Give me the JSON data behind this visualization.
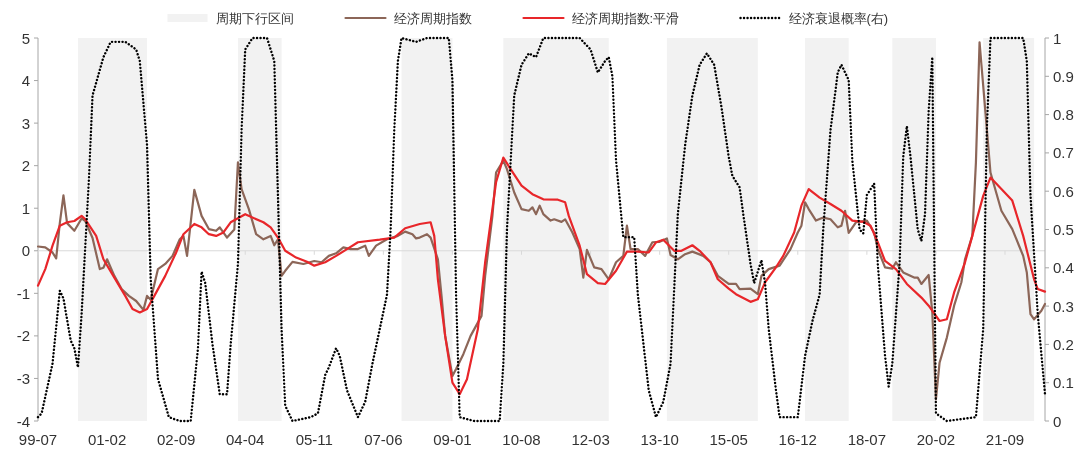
{
  "chart_data": {
    "type": "line",
    "xlim": [
      "1999-07",
      "2022-08"
    ],
    "ylim": [
      -4,
      5
    ],
    "y2lim": [
      0,
      1
    ],
    "xticks": [
      {
        "value": "1999-07",
        "label": "99-07"
      },
      {
        "value": "2001-02",
        "label": "01-02"
      },
      {
        "value": "2002-09",
        "label": "02-09"
      },
      {
        "value": "2004-04",
        "label": "04-04"
      },
      {
        "value": "2005-11",
        "label": "05-11"
      },
      {
        "value": "2007-06",
        "label": "07-06"
      },
      {
        "value": "2009-01",
        "label": "09-01"
      },
      {
        "value": "2010-08",
        "label": "10-08"
      },
      {
        "value": "2012-03",
        "label": "12-03"
      },
      {
        "value": "2013-10",
        "label": "13-10"
      },
      {
        "value": "2015-05",
        "label": "15-05"
      },
      {
        "value": "2016-12",
        "label": "16-12"
      },
      {
        "value": "2018-07",
        "label": "18-07"
      },
      {
        "value": "2020-02",
        "label": "20-02"
      },
      {
        "value": "2021-09",
        "label": "21-09"
      }
    ],
    "yticks": [
      -4,
      -3,
      -2,
      -1,
      0,
      1,
      2,
      3,
      4,
      5
    ],
    "y2ticks": [
      0,
      0.1,
      0.2,
      0.3,
      0.4,
      0.5,
      0.6,
      0.7,
      0.8,
      0.9,
      1
    ],
    "legend": "top",
    "bands": [
      {
        "axis": "x",
        "from": "2000-06",
        "to": "2002-01",
        "label": "周期下行区间",
        "color": "#f2f2f2"
      },
      {
        "axis": "x",
        "from": "2004-02",
        "to": "2005-02",
        "color": "#f2f2f2"
      },
      {
        "axis": "x",
        "from": "2007-11",
        "to": "2009-01",
        "color": "#f2f2f2"
      },
      {
        "axis": "x",
        "from": "2010-03",
        "to": "2012-08",
        "color": "#f2f2f2"
      },
      {
        "axis": "x",
        "from": "2013-12",
        "to": "2016-01",
        "color": "#f2f2f2"
      },
      {
        "axis": "x",
        "from": "2017-02",
        "to": "2018-02",
        "color": "#f2f2f2"
      },
      {
        "axis": "x",
        "from": "2019-02",
        "to": "2020-02",
        "color": "#f2f2f2"
      },
      {
        "axis": "x",
        "from": "2021-03",
        "to": "2022-05",
        "color": "#f2f2f2"
      }
    ],
    "series": [
      {
        "name": "经济周期指数",
        "color": "#8c6658",
        "line_style": "solid",
        "x": [
          "1999-07",
          "1999-09",
          "1999-11",
          "1999-12",
          "2000-01",
          "2000-02",
          "2000-03",
          "2000-05",
          "2000-07",
          "2000-08",
          "2000-10",
          "2000-12",
          "2001-01",
          "2001-02",
          "2001-04",
          "2001-06",
          "2001-08",
          "2001-10",
          "2001-12",
          "2002-01",
          "2002-02",
          "2002-04",
          "2002-06",
          "2002-08",
          "2002-10",
          "2002-11",
          "2002-12",
          "2003-02",
          "2003-04",
          "2003-06",
          "2003-08",
          "2003-09",
          "2003-11",
          "2004-01",
          "2004-02",
          "2004-03",
          "2004-05",
          "2004-07",
          "2004-09",
          "2004-11",
          "2004-12",
          "2005-01",
          "2005-02",
          "2005-03",
          "2005-05",
          "2005-08",
          "2005-11",
          "2006-01",
          "2006-03",
          "2006-05",
          "2006-07",
          "2006-09",
          "2006-11",
          "2007-01",
          "2007-02",
          "2007-04",
          "2007-07",
          "2007-10",
          "2007-12",
          "2008-02",
          "2008-03",
          "2008-04",
          "2008-06",
          "2008-07",
          "2008-09",
          "2008-10",
          "2008-11",
          "2009-01",
          "2009-02",
          "2009-04",
          "2009-06",
          "2009-09",
          "2009-10",
          "2009-12",
          "2010-01",
          "2010-03",
          "2010-04",
          "2010-06",
          "2010-08",
          "2010-10",
          "2010-11",
          "2010-12",
          "2011-01",
          "2011-02",
          "2011-04",
          "2011-05",
          "2011-07",
          "2011-08",
          "2011-10",
          "2011-12",
          "2012-01",
          "2012-02",
          "2012-04",
          "2012-06",
          "2012-08",
          "2012-10",
          "2012-12",
          "2013-01",
          "2013-02",
          "2013-04",
          "2013-06",
          "2013-08",
          "2013-10",
          "2013-12",
          "2014-01",
          "2014-03",
          "2014-05",
          "2014-07",
          "2014-10",
          "2014-12",
          "2015-02",
          "2015-05",
          "2015-07",
          "2015-08",
          "2015-11",
          "2016-01",
          "2016-02",
          "2016-04",
          "2016-07",
          "2016-10",
          "2016-12",
          "2017-01",
          "2017-02",
          "2017-03",
          "2017-05",
          "2017-07",
          "2017-09",
          "2017-11",
          "2017-12",
          "2018-01",
          "2018-02",
          "2018-04",
          "2018-07",
          "2018-09",
          "2018-10",
          "2018-12",
          "2019-02",
          "2019-03",
          "2019-05",
          "2019-08",
          "2019-09",
          "2019-10",
          "2019-12",
          "2020-01",
          "2020-02",
          "2020-03",
          "2020-05",
          "2020-07",
          "2020-09",
          "2020-10",
          "2020-12",
          "2021-01",
          "2021-02",
          "2021-04",
          "2021-05",
          "2021-08",
          "2021-11",
          "2022-02",
          "2022-03",
          "2022-04",
          "2022-05",
          "2022-07",
          "2022-08"
        ],
        "values": [
          0.1,
          0.08,
          -0.04,
          -0.18,
          0.65,
          1.3,
          0.65,
          0.47,
          0.76,
          0.7,
          0.3,
          -0.43,
          -0.4,
          -0.2,
          -0.59,
          -0.9,
          -1.06,
          -1.18,
          -1.39,
          -1.06,
          -1.15,
          -0.43,
          -0.31,
          -0.12,
          0.27,
          0.35,
          -0.12,
          1.43,
          0.82,
          0.51,
          0.47,
          0.55,
          0.31,
          0.5,
          2.08,
          1.45,
          0.98,
          0.39,
          0.27,
          0.35,
          0.13,
          0.27,
          -0.59,
          -0.47,
          -0.26,
          -0.31,
          -0.24,
          -0.27,
          -0.12,
          -0.06,
          0.08,
          0.04,
          0.04,
          0.12,
          -0.12,
          0.12,
          0.27,
          0.35,
          0.45,
          0.39,
          0.29,
          0.31,
          0.39,
          0.31,
          -0.2,
          -1.06,
          -2.0,
          -2.94,
          -2.78,
          -2.43,
          -2.0,
          -1.53,
          -0.59,
          0.82,
          1.84,
          2.12,
          1.92,
          1.37,
          0.98,
          0.94,
          1.02,
          0.86,
          1.06,
          0.86,
          0.71,
          0.74,
          0.68,
          0.74,
          0.43,
          0.04,
          -0.63,
          0.02,
          -0.39,
          -0.43,
          -0.67,
          -0.27,
          -0.12,
          0.59,
          0.04,
          0.04,
          -0.12,
          0.2,
          0.21,
          0.29,
          -0.1,
          -0.2,
          -0.08,
          -0.02,
          -0.12,
          -0.27,
          -0.59,
          -0.78,
          -0.78,
          -0.9,
          -0.89,
          -1.02,
          -0.59,
          -0.43,
          -0.35,
          0.04,
          0.43,
          0.59,
          1.14,
          0.98,
          0.71,
          0.78,
          0.74,
          0.55,
          0.59,
          0.94,
          0.42,
          0.67,
          0.71,
          0.43,
          0.04,
          -0.39,
          -0.42,
          -0.27,
          -0.51,
          -0.63,
          -0.63,
          -0.78,
          -0.57,
          -1.45,
          -3.49,
          -2.63,
          -2.04,
          -1.29,
          -0.74,
          -0.2,
          0.35,
          2.08,
          4.9,
          2.86,
          1.84,
          0.94,
          0.51,
          -0.12,
          -0.51,
          -1.49,
          -1.61,
          -1.41,
          -1.25
        ]
      },
      {
        "name": "经济周期指数:平滑",
        "color": "#e8262a",
        "line_style": "solid",
        "x": [
          "1999-07",
          "1999-09",
          "1999-11",
          "2000-01",
          "2000-03",
          "2000-05",
          "2000-07",
          "2000-08",
          "2000-11",
          "2001-01",
          "2001-04",
          "2001-07",
          "2001-09",
          "2001-11",
          "2002-01",
          "2002-03",
          "2002-06",
          "2002-09",
          "2002-11",
          "2003-02",
          "2003-04",
          "2003-06",
          "2003-08",
          "2003-10",
          "2003-12",
          "2004-04",
          "2004-06",
          "2004-09",
          "2004-11",
          "2005-01",
          "2005-03",
          "2005-06",
          "2005-09",
          "2005-11",
          "2006-02",
          "2006-05",
          "2006-08",
          "2006-11",
          "2007-05",
          "2007-09",
          "2007-12",
          "2008-04",
          "2008-07",
          "2008-08",
          "2008-09",
          "2008-11",
          "2009-01",
          "2009-03",
          "2009-05",
          "2009-08",
          "2009-10",
          "2010-01",
          "2010-03",
          "2010-05",
          "2010-08",
          "2010-11",
          "2011-02",
          "2011-06",
          "2011-08",
          "2011-09",
          "2011-12",
          "2012-02",
          "2012-05",
          "2012-07",
          "2012-10",
          "2013-01",
          "2013-04",
          "2013-07",
          "2013-09",
          "2013-11",
          "2014-02",
          "2014-04",
          "2014-07",
          "2014-09",
          "2014-12",
          "2015-02",
          "2015-05",
          "2015-07",
          "2015-11",
          "2016-01",
          "2016-03",
          "2016-06",
          "2016-08",
          "2016-11",
          "2017-01",
          "2017-03",
          "2017-06",
          "2017-09",
          "2017-12",
          "2018-03",
          "2018-06",
          "2018-08",
          "2018-10",
          "2018-12",
          "2019-03",
          "2019-06",
          "2019-10",
          "2019-12",
          "2020-03",
          "2020-05",
          "2020-07",
          "2020-10",
          "2020-12",
          "2021-03",
          "2021-05",
          "2021-08",
          "2021-11",
          "2022-02",
          "2022-05",
          "2022-06",
          "2022-08"
        ],
        "values": [
          -0.82,
          -0.43,
          0.12,
          0.59,
          0.67,
          0.7,
          0.82,
          0.74,
          0.35,
          -0.2,
          -0.63,
          -1.06,
          -1.37,
          -1.45,
          -1.37,
          -1.06,
          -0.59,
          -0.04,
          0.39,
          0.63,
          0.55,
          0.39,
          0.35,
          0.43,
          0.67,
          0.86,
          0.78,
          0.67,
          0.55,
          0.31,
          0,
          -0.16,
          -0.26,
          -0.35,
          -0.27,
          -0.12,
          0.04,
          0.2,
          0.26,
          0.31,
          0.53,
          0.63,
          0.67,
          0.35,
          -0.67,
          -2.0,
          -3.1,
          -3.37,
          -3.02,
          -1.84,
          -0.27,
          1.61,
          2.19,
          1.92,
          1.53,
          1.33,
          1.21,
          1.2,
          1.14,
          0.82,
          0.12,
          -0.55,
          -0.76,
          -0.78,
          -0.47,
          -0.02,
          -0.02,
          -0.04,
          0.2,
          0.26,
          0,
          0,
          0.13,
          0,
          -0.27,
          -0.67,
          -0.89,
          -1.02,
          -1.2,
          -1.14,
          -0.74,
          -0.39,
          -0.12,
          0.43,
          1.06,
          1.45,
          1.25,
          1.1,
          0.94,
          0.71,
          0.68,
          0.59,
          0.2,
          -0.24,
          -0.43,
          -0.78,
          -1.1,
          -1.29,
          -1.65,
          -1.61,
          -0.98,
          -0.27,
          0.35,
          1.29,
          1.72,
          1.45,
          1.18,
          0.35,
          -0.67,
          -0.9,
          -0.96
        ]
      },
      {
        "name": "经济衰退概率(右)",
        "color": "#000000",
        "line_style": "dotted",
        "axis": "y2",
        "x": [
          "1999-07",
          "1999-08",
          "1999-11",
          "2000-01",
          "2000-02",
          "2000-04",
          "2000-05",
          "2000-06",
          "2000-07",
          "2000-09",
          "2000-10",
          "2001-01",
          "2001-03",
          "2001-07",
          "2001-10",
          "2001-11",
          "2002-01",
          "2002-02",
          "2002-04",
          "2002-07",
          "2002-10",
          "2003-01",
          "2003-03",
          "2003-04",
          "2003-05",
          "2003-07",
          "2003-09",
          "2003-11",
          "2003-12",
          "2004-02",
          "2004-03",
          "2004-04",
          "2004-06",
          "2004-10",
          "2004-12",
          "2005-01",
          "2005-02",
          "2005-03",
          "2005-05",
          "2005-10",
          "2005-12",
          "2006-02",
          "2006-03",
          "2006-05",
          "2006-06",
          "2006-08",
          "2006-11",
          "2007-01",
          "2007-03",
          "2007-05",
          "2007-07",
          "2007-08",
          "2007-09",
          "2007-10",
          "2007-11",
          "2008-03",
          "2008-06",
          "2008-12",
          "2009-01",
          "2009-02",
          "2009-03",
          "2009-07",
          "2010-02",
          "2010-03",
          "2010-04",
          "2010-06",
          "2010-08",
          "2010-10",
          "2010-12",
          "2011-02",
          "2011-12",
          "2012-03",
          "2012-05",
          "2012-07",
          "2012-08",
          "2012-09",
          "2012-10",
          "2012-12",
          "2013-03",
          "2013-04",
          "2013-07",
          "2013-09",
          "2013-11",
          "2014-01",
          "2014-03",
          "2014-05",
          "2014-07",
          "2014-09",
          "2014-11",
          "2015-01",
          "2015-03",
          "2015-05",
          "2015-06",
          "2015-08",
          "2015-09",
          "2015-11",
          "2015-12",
          "2016-02",
          "2016-03",
          "2016-04",
          "2016-06",
          "2016-07",
          "2016-12",
          "2017-02",
          "2017-04",
          "2017-06",
          "2017-07",
          "2017-09",
          "2017-11",
          "2017-12",
          "2018-02",
          "2018-03",
          "2018-05",
          "2018-06",
          "2018-07",
          "2018-09",
          "2018-10",
          "2018-12",
          "2019-01",
          "2019-02",
          "2019-04",
          "2019-05",
          "2019-06",
          "2019-07",
          "2019-09",
          "2019-10",
          "2019-11",
          "2019-12",
          "2020-01",
          "2020-02",
          "2020-05",
          "2021-01",
          "2021-03",
          "2021-04",
          "2021-05",
          "2022-02",
          "2022-03",
          "2022-04",
          "2022-06",
          "2022-08"
        ],
        "values": [
          0.01,
          0.02,
          0.15,
          0.34,
          0.32,
          0.21,
          0.19,
          0.14,
          0.28,
          0.63,
          0.85,
          0.95,
          0.99,
          0.99,
          0.97,
          0.94,
          0.72,
          0.37,
          0.11,
          0.01,
          0,
          0,
          0.19,
          0.39,
          0.36,
          0.2,
          0.07,
          0.07,
          0.2,
          0.41,
          0.76,
          0.97,
          1,
          1,
          0.94,
          0.59,
          0.24,
          0.04,
          0,
          0.01,
          0.02,
          0.12,
          0.14,
          0.19,
          0.17,
          0.08,
          0.01,
          0.05,
          0.15,
          0.24,
          0.33,
          0.5,
          0.76,
          0.94,
          1,
          0.99,
          1,
          1,
          0.89,
          0.33,
          0.01,
          0,
          0,
          0.15,
          0.5,
          0.85,
          0.93,
          0.96,
          0.95,
          1,
          1,
          0.97,
          0.91,
          0.94,
          0.95,
          0.9,
          0.68,
          0.48,
          0.48,
          0.33,
          0.08,
          0.01,
          0.05,
          0.15,
          0.54,
          0.72,
          0.85,
          0.93,
          0.96,
          0.93,
          0.82,
          0.69,
          0.64,
          0.61,
          0.54,
          0.41,
          0.36,
          0.42,
          0.36,
          0.24,
          0.08,
          0.01,
          0.01,
          0.17,
          0.26,
          0.33,
          0.5,
          0.76,
          0.91,
          0.93,
          0.89,
          0.68,
          0.5,
          0.49,
          0.59,
          0.62,
          0.41,
          0.17,
          0.09,
          0.15,
          0.41,
          0.69,
          0.77,
          0.69,
          0.5,
          0.47,
          0.54,
          0.81,
          0.95,
          0.02,
          0,
          0.01,
          0.24,
          0.76,
          1,
          1,
          0.94,
          0.59,
          0.28,
          0.07
        ]
      }
    ]
  }
}
